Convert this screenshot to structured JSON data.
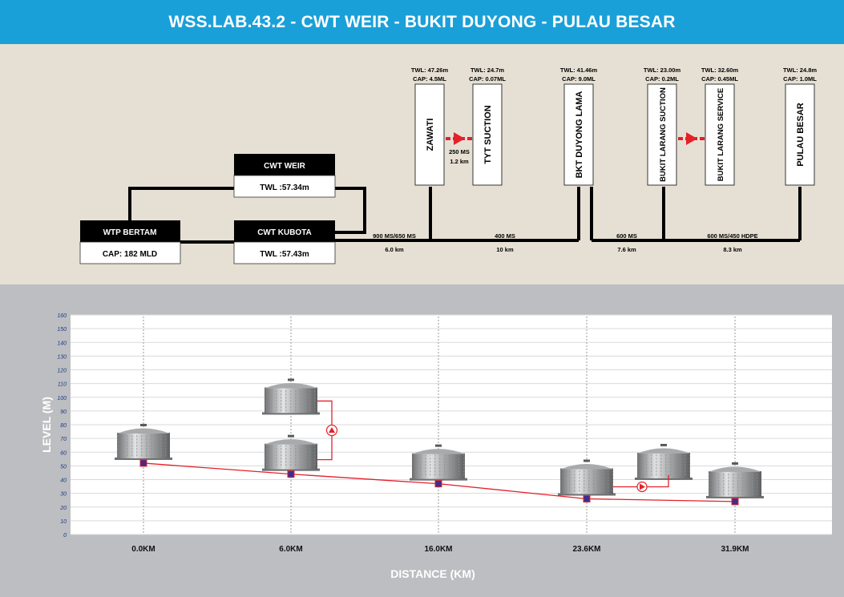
{
  "header": {
    "title": "WSS.LAB.43.2 - CWT WEIR - BUKIT DUYONG - PULAU BESAR"
  },
  "schematic": {
    "boxes": [
      {
        "id": "cwt-weir",
        "title": "CWT WEIR",
        "value": "TWL :57.34m"
      },
      {
        "id": "wtp-bertam",
        "title": "WTP BERTAM",
        "value": "CAP: 182 MLD"
      },
      {
        "id": "cwt-kubota",
        "title": "CWT KUBOTA",
        "value": "TWL :57.43m"
      }
    ],
    "tanks": [
      {
        "id": "zawati",
        "name": "ZAWATI",
        "twl": "TWL: 47.26m",
        "cap": "CAP: 4.5ML"
      },
      {
        "id": "tyt-suction",
        "name": "TYT SUCTION",
        "twl": "TWL: 24.7m",
        "cap": "CAP: 0.07ML"
      },
      {
        "id": "bkt-duyong-lama",
        "name": "BKT DUYONG LAMA",
        "twl": "TWL: 41.46m",
        "cap": "CAP: 9.0ML"
      },
      {
        "id": "bukit-larang-suction",
        "name": "BUKIT LARANG SUCTION",
        "twl": "TWL: 23.00m",
        "cap": "CAP: 0.2ML"
      },
      {
        "id": "bukit-larang-service",
        "name": "BUKIT LARANG SERVICE",
        "twl": "TWL: 32.60m",
        "cap": "CAP: 0.45ML"
      },
      {
        "id": "pulau-besar",
        "name": "PULAU BESAR",
        "twl": "TWL: 24.8m",
        "cap": "CAP: 1.0ML"
      }
    ],
    "zawati_pipe": {
      "size": "250 MS",
      "length": "1.2 km"
    },
    "pipes": [
      {
        "size": "900 MS/650 MS",
        "length": "6.0 km"
      },
      {
        "size": "400 MS",
        "length": "10 km"
      },
      {
        "size": "600 MS",
        "length": "7.6 km"
      },
      {
        "size": "600 MS/450 HDPE",
        "length": "8.3 km"
      }
    ]
  },
  "chart_data": {
    "type": "line",
    "title": "",
    "xlabel": "DISTANCE (KM)",
    "ylabel": "LEVEL (M)",
    "ylim": [
      0,
      160
    ],
    "yticks": [
      0,
      10,
      20,
      30,
      40,
      50,
      60,
      70,
      80,
      90,
      100,
      110,
      120,
      130,
      140,
      150,
      160
    ],
    "grid": true,
    "categories": [
      "0.0KM",
      "6.0KM",
      "16.0KM",
      "23.6KM",
      "31.9KM"
    ],
    "series": [
      {
        "values": [
          52,
          44,
          37,
          26,
          24
        ]
      }
    ],
    "elevated_tanks": [
      {
        "category_index": 1,
        "level": 85
      },
      {
        "category_index": 3,
        "level": 38
      }
    ]
  },
  "colors": {
    "header": "#1aa0d8",
    "schematic_bg": "#e6e0d4",
    "profile_bg": "#bdbec1",
    "pipe": "#000000",
    "profile_line": "#e4202a",
    "marker": "#3a2f8f",
    "pump": "#e4202a"
  }
}
